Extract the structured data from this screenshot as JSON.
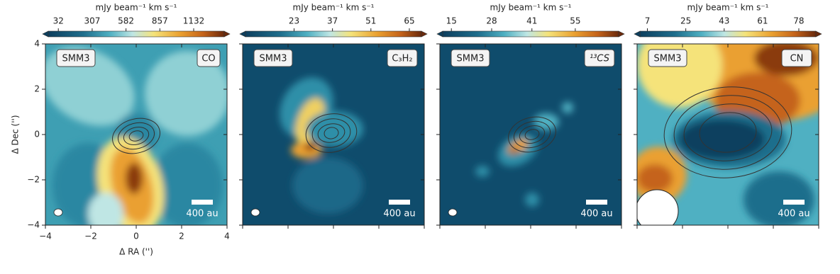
{
  "figure": {
    "axes": {
      "x_label": "Δ RA ('')",
      "y_label": "Δ Dec ('')",
      "xlim": [
        -4,
        4
      ],
      "ylim": [
        -4,
        4
      ],
      "xticks": [
        {
          "value": -4,
          "label": "−4"
        },
        {
          "value": -2,
          "label": "−2"
        },
        0,
        2,
        4
      ],
      "yticks": [
        {
          "value": -4,
          "label": "−4"
        },
        {
          "value": -2,
          "label": "−2"
        },
        0,
        2,
        4
      ]
    },
    "panels": [
      {
        "source": "SMM3",
        "molecule": "CO",
        "colorbar_label": "mJy beam⁻¹ km s⁻¹",
        "colorbar_lim": [
          -50,
          1380
        ],
        "colorbar_ticks": [
          32,
          307,
          582,
          857,
          1132
        ],
        "scale_bar": "400 au"
      },
      {
        "source": "SMM3",
        "molecule": "C₃H₂",
        "colorbar_label": "mJy beam⁻¹ km s⁻¹",
        "colorbar_lim": [
          5.3,
          69.4
        ],
        "colorbar_ticks": [
          23,
          37,
          51,
          65
        ],
        "scale_bar": "400 au"
      },
      {
        "source": "SMM3",
        "molecule": "¹³CS",
        "colorbar_label": "mJy beam⁻¹ km s⁻¹",
        "colorbar_lim": [
          12.2,
          69
        ],
        "colorbar_ticks": [
          15,
          28,
          41,
          55
        ],
        "scale_bar": "400 au"
      },
      {
        "source": "SMM3",
        "molecule": "CN",
        "colorbar_label": "mJy beam⁻¹ km s⁻¹",
        "colorbar_lim": [
          3.5,
          86
        ],
        "colorbar_ticks": [
          7,
          25,
          43,
          61,
          78
        ],
        "scale_bar": "400 au"
      }
    ]
  }
}
